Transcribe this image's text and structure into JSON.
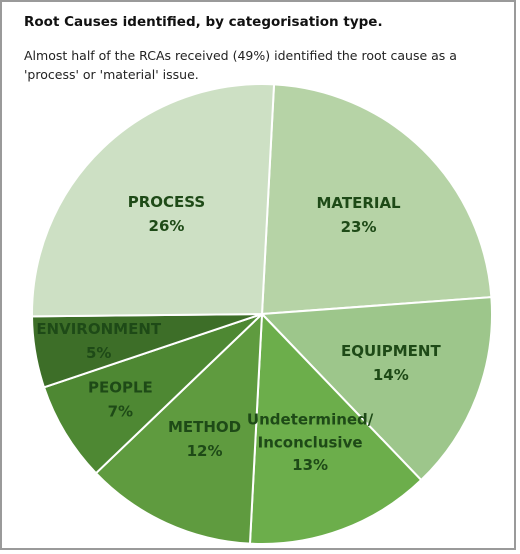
{
  "chart_data": {
    "type": "pie",
    "title": "Root Causes identified, by categorisation type.",
    "subtitle": "Almost half of the RCAs received (49%) identified the root cause as a 'process' or 'material' issue.",
    "categories": [
      "MATERIAL",
      "EQUIPMENT",
      "Undetermined/ Inconclusive",
      "METHOD",
      "PEOPLE",
      "ENVIRONMENT",
      "PROCESS"
    ],
    "values": [
      23,
      14,
      13,
      12,
      7,
      5,
      26
    ],
    "value_labels": [
      "23%",
      "14%",
      "13%",
      "12%",
      "7%",
      "5%",
      "26%"
    ],
    "colors": [
      "#b6d3a6",
      "#9dc68b",
      "#6cae4b",
      "#5f9b3f",
      "#4e8833",
      "#3d6e28",
      "#cde0c4"
    ]
  }
}
